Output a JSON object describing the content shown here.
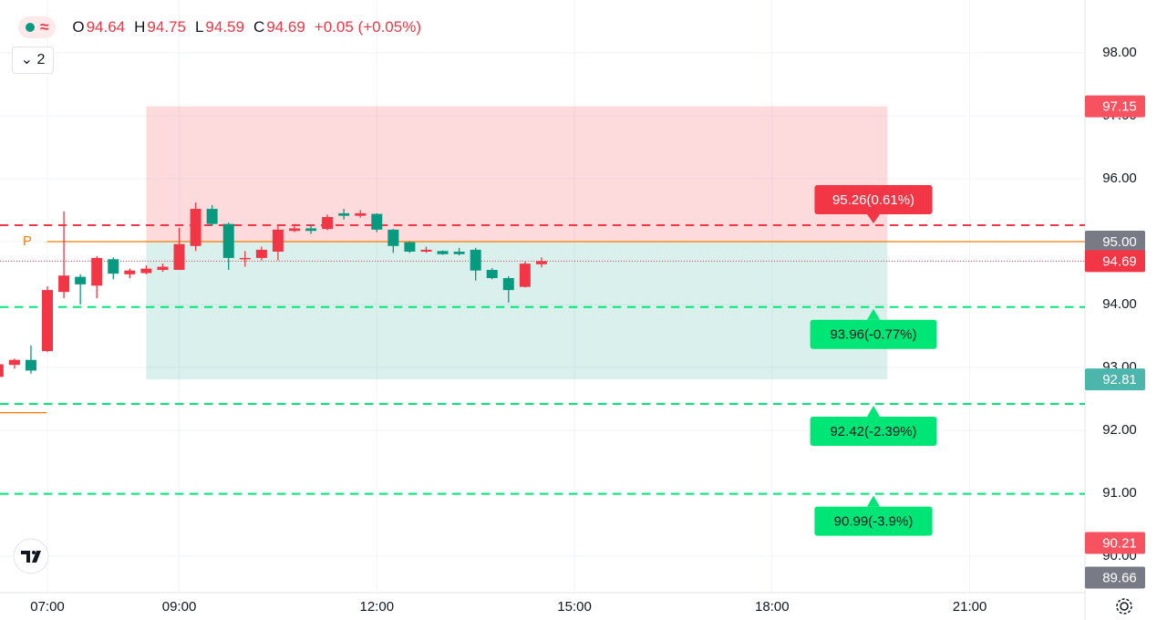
{
  "header": {
    "open_prefix": "O",
    "high_prefix": "H",
    "low_prefix": "L",
    "close_prefix": "C",
    "change": "+0.05 (+0.05%)",
    "interval_button": "2"
  },
  "chart_data": {
    "type": "candlestick",
    "x": [
      6.25,
      6.5,
      6.75,
      7.0,
      7.25,
      7.5,
      7.75,
      8.0,
      8.25,
      8.5,
      8.75,
      9.0,
      9.25,
      9.5,
      9.75,
      10.0,
      10.25,
      10.5,
      10.75,
      11.0,
      11.25,
      11.5,
      11.75,
      12.0,
      12.25,
      12.5,
      12.75,
      13.0,
      13.25,
      13.5,
      13.75,
      14.0,
      14.25,
      14.5
    ],
    "ohlc": {
      "open": [
        92.85,
        93.04,
        93.12,
        93.26,
        94.2,
        94.44,
        94.3,
        94.72,
        94.48,
        94.5,
        94.55,
        94.55,
        94.93,
        95.52,
        95.28,
        94.72,
        94.74,
        94.84,
        95.17,
        95.21,
        95.2,
        95.45,
        95.41,
        95.44,
        95.19,
        94.99,
        94.84,
        94.85,
        94.84,
        94.87,
        94.55,
        94.42,
        94.28,
        94.64
      ],
      "high": [
        93.07,
        93.14,
        93.35,
        94.29,
        95.48,
        94.48,
        94.77,
        94.75,
        94.57,
        94.62,
        94.65,
        95.22,
        95.62,
        95.58,
        95.3,
        94.85,
        94.92,
        95.25,
        95.28,
        95.27,
        95.43,
        95.52,
        95.5,
        95.45,
        95.2,
        95.01,
        94.92,
        94.86,
        94.9,
        94.9,
        94.58,
        94.45,
        94.68,
        94.75
      ],
      "low": [
        92.83,
        92.98,
        92.9,
        93.24,
        94.1,
        94.0,
        94.1,
        94.4,
        94.42,
        94.48,
        94.52,
        94.55,
        94.85,
        95.25,
        94.55,
        94.6,
        94.7,
        94.7,
        95.15,
        95.12,
        95.18,
        95.35,
        95.38,
        95.15,
        94.82,
        94.82,
        94.82,
        94.79,
        94.78,
        94.38,
        94.4,
        94.03,
        94.27,
        94.59
      ],
      "close": [
        93.05,
        93.12,
        92.95,
        94.23,
        94.46,
        94.32,
        94.74,
        94.49,
        94.54,
        94.57,
        94.6,
        94.96,
        95.52,
        95.28,
        94.74,
        94.74,
        94.87,
        95.19,
        95.21,
        95.17,
        95.39,
        95.41,
        95.45,
        95.19,
        94.93,
        94.84,
        94.87,
        94.8,
        94.8,
        94.54,
        94.42,
        94.23,
        94.65,
        94.69
      ]
    },
    "up_color": "#f23645",
    "down_color": "#089981",
    "xlim": [
      6.28,
      22.75
    ],
    "xticks": [
      {
        "value": 7,
        "label": "07:00"
      },
      {
        "value": 9,
        "label": "09:00"
      },
      {
        "value": 12,
        "label": "12:00"
      },
      {
        "value": 15,
        "label": "15:00"
      },
      {
        "value": 18,
        "label": "18:00"
      },
      {
        "value": 21,
        "label": "21:00"
      }
    ],
    "ylim": [
      89.42,
      98.84
    ],
    "yticks": [
      {
        "value": 90,
        "label": "90.00"
      },
      {
        "value": 91,
        "label": "91.00"
      },
      {
        "value": 92,
        "label": "92.00"
      },
      {
        "value": 93,
        "label": "93.00"
      },
      {
        "value": 94,
        "label": "94.00"
      },
      {
        "value": 95,
        "label": "95.00"
      },
      {
        "value": 96,
        "label": "96.00"
      },
      {
        "value": 97,
        "label": "97.00"
      },
      {
        "value": 98,
        "label": "98.00"
      }
    ],
    "grid": true,
    "position": {
      "start": 8.5,
      "end": 19.75,
      "target": 97.15,
      "entry": 95,
      "stop": 92.81
    },
    "pivot": {
      "value": 95,
      "label": "P",
      "color": "#f57c00"
    },
    "prior_pivot": 92.28,
    "levels": [
      {
        "value": 95.26,
        "label": "95.26(0.61%)",
        "color": "#f23645"
      },
      {
        "value": 93.96,
        "label": "93.96(-0.77%)",
        "color": "#00e676"
      },
      {
        "value": 92.42,
        "label": "92.42(-2.39%)",
        "color": "#00e676"
      },
      {
        "value": 90.99,
        "label": "90.99(-3.9%)",
        "color": "#00e676"
      }
    ],
    "badges": [
      {
        "value": 97.15,
        "color": "#f7525f"
      },
      {
        "value": 95,
        "label": "95.00",
        "color": "#787b86"
      },
      {
        "value": 94.69,
        "color": "#f23645"
      },
      {
        "value": 92.81,
        "color": "#4db6ac"
      },
      {
        "value": 90.21,
        "color": "#f7525f"
      },
      {
        "value": 89.66,
        "color": "#787b86"
      }
    ]
  }
}
